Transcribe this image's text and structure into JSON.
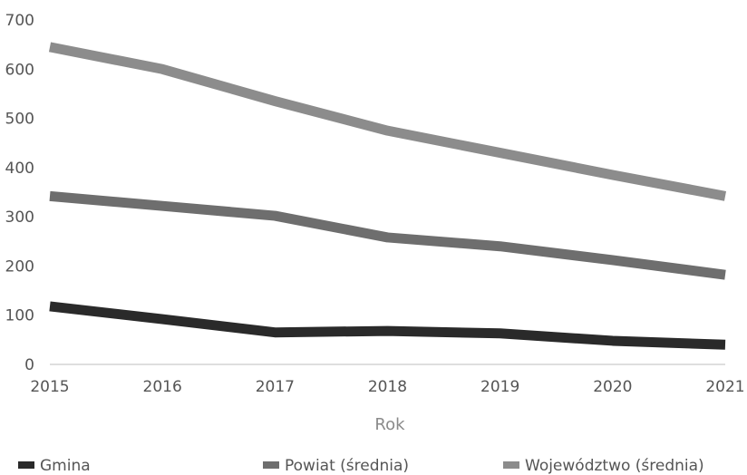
{
  "chart_data": {
    "type": "line",
    "title": "",
    "xlabel": "Rok",
    "ylabel": "",
    "x": [
      "2015",
      "2016",
      "2017",
      "2018",
      "2019",
      "2020",
      "2021"
    ],
    "ylim": [
      0,
      700
    ],
    "yticks": [
      "0",
      "100",
      "200",
      "300",
      "400",
      "500",
      "600",
      "700"
    ],
    "grid": false,
    "legend": "bottom",
    "series": [
      {
        "name": "Gmina",
        "color": "#2a2a2a",
        "values": [
          118,
          92,
          65,
          68,
          63,
          48,
          40
        ]
      },
      {
        "name": "Powiat (średnia)",
        "color": "#6e6e6e",
        "values": [
          342,
          322,
          302,
          258,
          240,
          212,
          182
        ]
      },
      {
        "name": "Województwo (średnia)",
        "color": "#8c8c8c",
        "values": [
          645,
          600,
          535,
          475,
          430,
          385,
          342
        ]
      }
    ]
  }
}
